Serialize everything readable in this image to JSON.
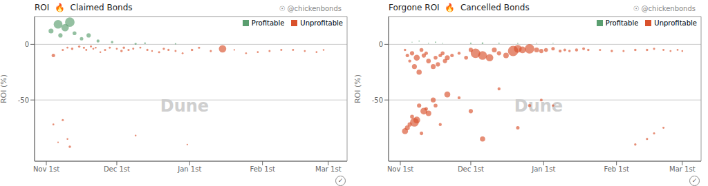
{
  "chart_data": [
    {
      "type": "scatter",
      "title": "ROI  🔥  Claimed Bonds",
      "ylabel": "ROI (%)",
      "annotations": [
        "☉ @chickenbonds",
        "Dune",
        "✓"
      ],
      "xlim": [
        -5,
        128
      ],
      "ylim": [
        -105,
        25
      ],
      "xticks": [
        {
          "value": 0,
          "label": "Nov 1st"
        },
        {
          "value": 30,
          "label": "Dec 1st"
        },
        {
          "value": 61,
          "label": "Jan 1st"
        },
        {
          "value": 92,
          "label": "Feb 1st"
        },
        {
          "value": 120,
          "label": "Mar 1st"
        }
      ],
      "yticks": [
        -50,
        0
      ],
      "grid": true,
      "legend": "upper right",
      "series": [
        {
          "name": "Profitable",
          "color": "#5a9e6f",
          "x": [
            2,
            5,
            6,
            8,
            10,
            12,
            15,
            18,
            22,
            28,
            38,
            42,
            55
          ],
          "values": [
            12,
            18,
            8,
            15,
            20,
            10,
            5,
            8,
            3,
            2,
            0.5,
            1,
            0.5
          ],
          "size": [
            800,
            2500,
            600,
            1800,
            3000,
            500,
            400,
            600,
            300,
            200,
            150,
            100,
            80
          ]
        },
        {
          "name": "Unprofitable",
          "color": "#d9512c",
          "x": [
            3,
            7,
            9,
            11,
            14,
            16,
            17,
            19,
            20,
            21,
            23,
            25,
            27,
            30,
            32,
            33,
            35,
            37,
            40,
            43,
            45,
            48,
            50,
            52,
            55,
            58,
            62,
            65,
            70,
            75,
            80,
            85,
            90,
            95,
            100,
            105,
            110,
            115,
            118,
            3,
            5,
            7,
            9,
            10,
            38,
            60
          ],
          "values": [
            -10,
            -5,
            -3,
            -4,
            -2,
            -3,
            -5,
            -2,
            -4,
            -3,
            -7,
            -5,
            -3,
            -4,
            -6,
            -3,
            -5,
            -4,
            -3,
            -5,
            -6,
            -7,
            -4,
            -5,
            -6,
            -8,
            -5,
            -3,
            -6,
            -4,
            -5,
            -8,
            -7,
            -6,
            -5,
            -5,
            -6,
            -7,
            -5,
            -72,
            -88,
            -68,
            -85,
            -92,
            -82,
            -90
          ],
          "size": [
            400,
            150,
            120,
            200,
            180,
            160,
            130,
            140,
            120,
            110,
            100,
            150,
            130,
            120,
            200,
            180,
            150,
            140,
            120,
            160,
            100,
            150,
            180,
            160,
            140,
            120,
            200,
            150,
            160,
            1800,
            80,
            100,
            120,
            150,
            140,
            130,
            120,
            110,
            100,
            120,
            80,
            150,
            100,
            200,
            100,
            80
          ]
        }
      ]
    },
    {
      "type": "scatter",
      "title": "Forgone ROI  🔥  Cancelled Bonds",
      "ylabel": "ROI (%)",
      "annotations": [
        "☉ @chickenbonds",
        "Dune",
        "✓"
      ],
      "xlim": [
        -5,
        128
      ],
      "ylim": [
        -105,
        25
      ],
      "xticks": [
        {
          "value": 0,
          "label": "Nov 1st"
        },
        {
          "value": 30,
          "label": "Dec 1st"
        },
        {
          "value": 61,
          "label": "Jan 1st"
        },
        {
          "value": 92,
          "label": "Feb 1st"
        },
        {
          "value": 120,
          "label": "Mar 1st"
        }
      ],
      "yticks": [
        -50,
        0
      ],
      "grid": true,
      "legend": "upper right",
      "series": [
        {
          "name": "Profitable",
          "color": "#5a9e6f",
          "x": [
            5,
            8,
            12,
            15,
            18,
            30,
            35,
            42,
            50,
            58,
            65
          ],
          "values": [
            2,
            3,
            1,
            2,
            1,
            1,
            1,
            1,
            1,
            1,
            1
          ],
          "size": [
            30,
            50,
            40,
            60,
            30,
            80,
            100,
            60,
            50,
            40,
            30
          ]
        },
        {
          "name": "Unprofitable",
          "color": "#d9512c",
          "x": [
            2,
            3,
            4,
            5,
            6,
            7,
            8,
            9,
            10,
            11,
            12,
            14,
            15,
            16,
            17,
            18,
            19,
            20,
            22,
            25,
            28,
            30,
            32,
            35,
            38,
            40,
            42,
            45,
            48,
            50,
            52,
            55,
            58,
            60,
            62,
            65,
            68,
            70,
            72,
            75,
            78,
            80,
            85,
            90,
            95,
            100,
            105,
            108,
            112,
            115,
            118,
            120,
            2,
            3,
            4,
            5,
            6,
            7,
            8,
            9,
            10,
            11,
            12,
            14,
            15,
            17,
            20,
            25,
            30,
            35,
            42,
            50,
            55,
            60,
            65,
            100,
            105,
            108,
            112
          ],
          "values": [
            -5,
            -10,
            -15,
            -8,
            -20,
            -12,
            -25,
            -5,
            -10,
            -8,
            -15,
            -20,
            -12,
            -18,
            -10,
            -8,
            -15,
            -12,
            -10,
            -8,
            -12,
            -5,
            -8,
            -10,
            -12,
            -5,
            -8,
            -10,
            -6,
            -4,
            -5,
            -4,
            -5,
            -6,
            -5,
            -4,
            -6,
            -5,
            -6,
            -5,
            -4,
            -5,
            -5,
            -6,
            -6,
            -5,
            -5,
            -4,
            -5,
            -6,
            -5,
            -6,
            -78,
            -75,
            -72,
            -65,
            -70,
            -68,
            -55,
            -80,
            -60,
            -58,
            -62,
            -50,
            -55,
            -72,
            -45,
            -48,
            -60,
            -85,
            -40,
            -75,
            -55,
            -50,
            -55,
            -90,
            -85,
            -80,
            -75
          ],
          "size": [
            200,
            400,
            300,
            600,
            800,
            1200,
            900,
            500,
            600,
            400,
            700,
            800,
            500,
            600,
            400,
            500,
            600,
            800,
            400,
            300,
            500,
            600,
            3000,
            2500,
            1800,
            800,
            600,
            1000,
            3500,
            2000,
            1500,
            3000,
            800,
            600,
            500,
            400,
            300,
            250,
            200,
            300,
            250,
            200,
            150,
            200,
            150,
            200,
            180,
            150,
            140,
            130,
            120,
            110,
            1200,
            800,
            600,
            500,
            2500,
            1500,
            600,
            400,
            1500,
            400,
            1000,
            800,
            500,
            300,
            1200,
            300,
            600,
            900,
            300,
            400,
            300,
            250,
            200,
            180,
            160,
            150,
            140
          ]
        }
      ]
    }
  ]
}
